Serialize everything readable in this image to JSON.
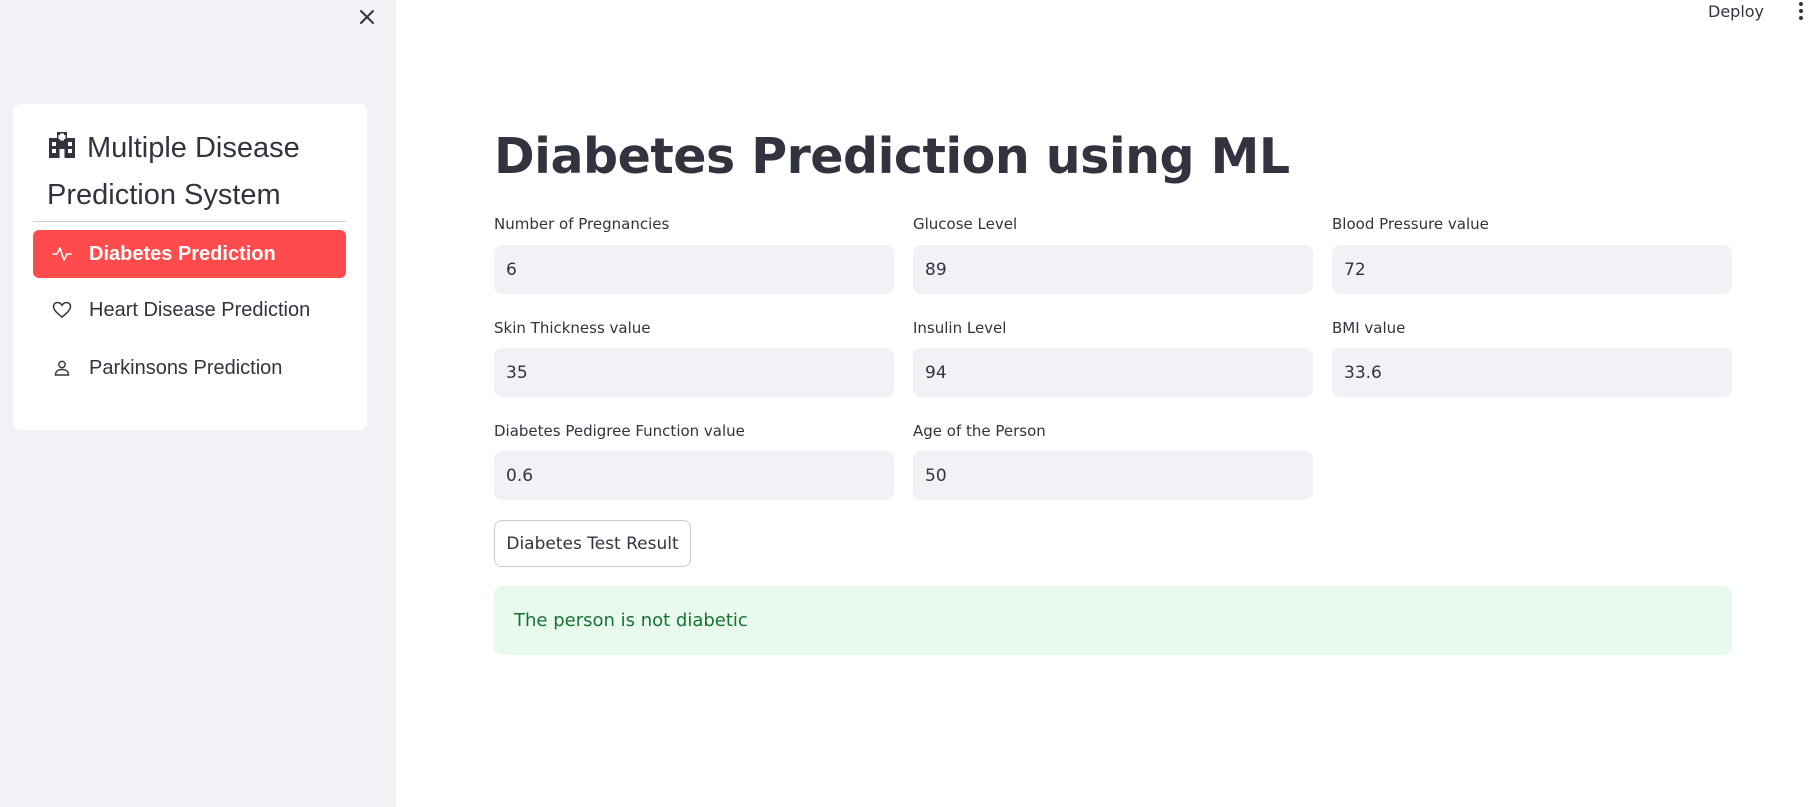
{
  "sidebar": {
    "title": "Multiple Disease Prediction System",
    "menu": [
      {
        "label": "Diabetes Prediction",
        "icon": "activity-icon",
        "active": true
      },
      {
        "label": "Heart Disease Prediction",
        "icon": "heart-icon",
        "active": false
      },
      {
        "label": "Parkinsons Prediction",
        "icon": "person-icon",
        "active": false
      }
    ]
  },
  "toolbar": {
    "deploy_label": "Deploy"
  },
  "main": {
    "title": "Diabetes Prediction using ML",
    "fields": [
      {
        "label": "Number of Pregnancies",
        "value": "6"
      },
      {
        "label": "Glucose Level",
        "value": "89"
      },
      {
        "label": "Blood Pressure value",
        "value": "72"
      },
      {
        "label": "Skin Thickness value",
        "value": "35"
      },
      {
        "label": "Insulin Level",
        "value": "94"
      },
      {
        "label": "BMI value",
        "value": "33.6"
      },
      {
        "label": "Diabetes Pedigree Function value",
        "value": "0.6"
      },
      {
        "label": "Age of the Person",
        "value": "50"
      }
    ],
    "button_label": "Diabetes Test Result",
    "result_text": "The person is not diabetic"
  },
  "colors": {
    "accent": "#ff4b4b",
    "sidebar_bg": "#f0f2f6",
    "success_bg": "#e8f9ee",
    "success_text": "#177233"
  }
}
